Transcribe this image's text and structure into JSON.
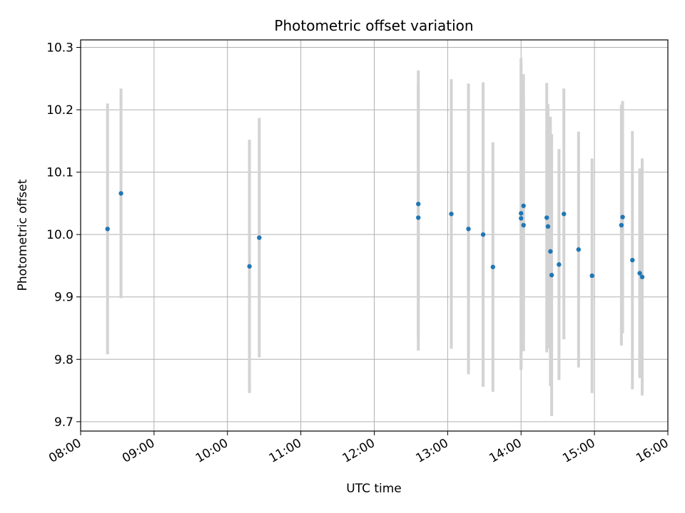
{
  "chart_data": {
    "type": "scatter",
    "title": "Photometric offset variation",
    "xlabel": "UTC time",
    "ylabel": "Photometric offset",
    "x_axis": "time",
    "xlim": [
      "08:00",
      "16:00"
    ],
    "ylim": [
      9.685,
      10.312
    ],
    "xticks": [
      "08:00",
      "09:00",
      "10:00",
      "11:00",
      "12:00",
      "13:00",
      "14:00",
      "15:00",
      "16:00"
    ],
    "yticks": [
      9.7,
      9.8,
      9.9,
      10.0,
      10.1,
      10.2,
      10.3
    ],
    "ytick_labels": [
      "9.7",
      "9.8",
      "9.9",
      "10.0",
      "10.1",
      "10.2",
      "10.3"
    ],
    "grid": true,
    "colors": {
      "point": "#1f77b4",
      "errorbar": "#d3d3d3",
      "grid": "#b0b0b0"
    },
    "points": [
      {
        "x": "08:22",
        "y": 10.009,
        "err": 0.201
      },
      {
        "x": "08:33",
        "y": 10.066,
        "err": 0.168
      },
      {
        "x": "10:18",
        "y": 9.949,
        "err": 0.203
      },
      {
        "x": "10:26",
        "y": 9.995,
        "err": 0.192
      },
      {
        "x": "12:36",
        "y": 10.049,
        "err": 0.214
      },
      {
        "x": "12:36",
        "y": 10.027,
        "err": 0.213
      },
      {
        "x": "13:03",
        "y": 10.033,
        "err": 0.216
      },
      {
        "x": "13:17",
        "y": 10.009,
        "err": 0.233
      },
      {
        "x": "13:29",
        "y": 10.0,
        "err": 0.244
      },
      {
        "x": "13:37",
        "y": 9.948,
        "err": 0.2
      },
      {
        "x": "14:00",
        "y": 10.034,
        "err": 0.249
      },
      {
        "x": "14:00",
        "y": 10.026,
        "err": 0.243
      },
      {
        "x": "14:02",
        "y": 10.046,
        "err": 0.211
      },
      {
        "x": "14:02",
        "y": 10.015,
        "err": 0.202
      },
      {
        "x": "14:21",
        "y": 10.027,
        "err": 0.216
      },
      {
        "x": "14:22",
        "y": 10.013,
        "err": 0.196
      },
      {
        "x": "14:24",
        "y": 9.973,
        "err": 0.216
      },
      {
        "x": "14:25",
        "y": 9.935,
        "err": 0.226
      },
      {
        "x": "14:31",
        "y": 9.952,
        "err": 0.185
      },
      {
        "x": "14:35",
        "y": 10.033,
        "err": 0.201
      },
      {
        "x": "14:47",
        "y": 9.976,
        "err": 0.189
      },
      {
        "x": "14:58",
        "y": 9.934,
        "err": 0.188
      },
      {
        "x": "15:22",
        "y": 10.015,
        "err": 0.193
      },
      {
        "x": "15:23",
        "y": 10.028,
        "err": 0.186
      },
      {
        "x": "15:31",
        "y": 9.959,
        "err": 0.207
      },
      {
        "x": "15:37",
        "y": 9.938,
        "err": 0.168
      },
      {
        "x": "15:39",
        "y": 9.932,
        "err": 0.19
      }
    ]
  }
}
